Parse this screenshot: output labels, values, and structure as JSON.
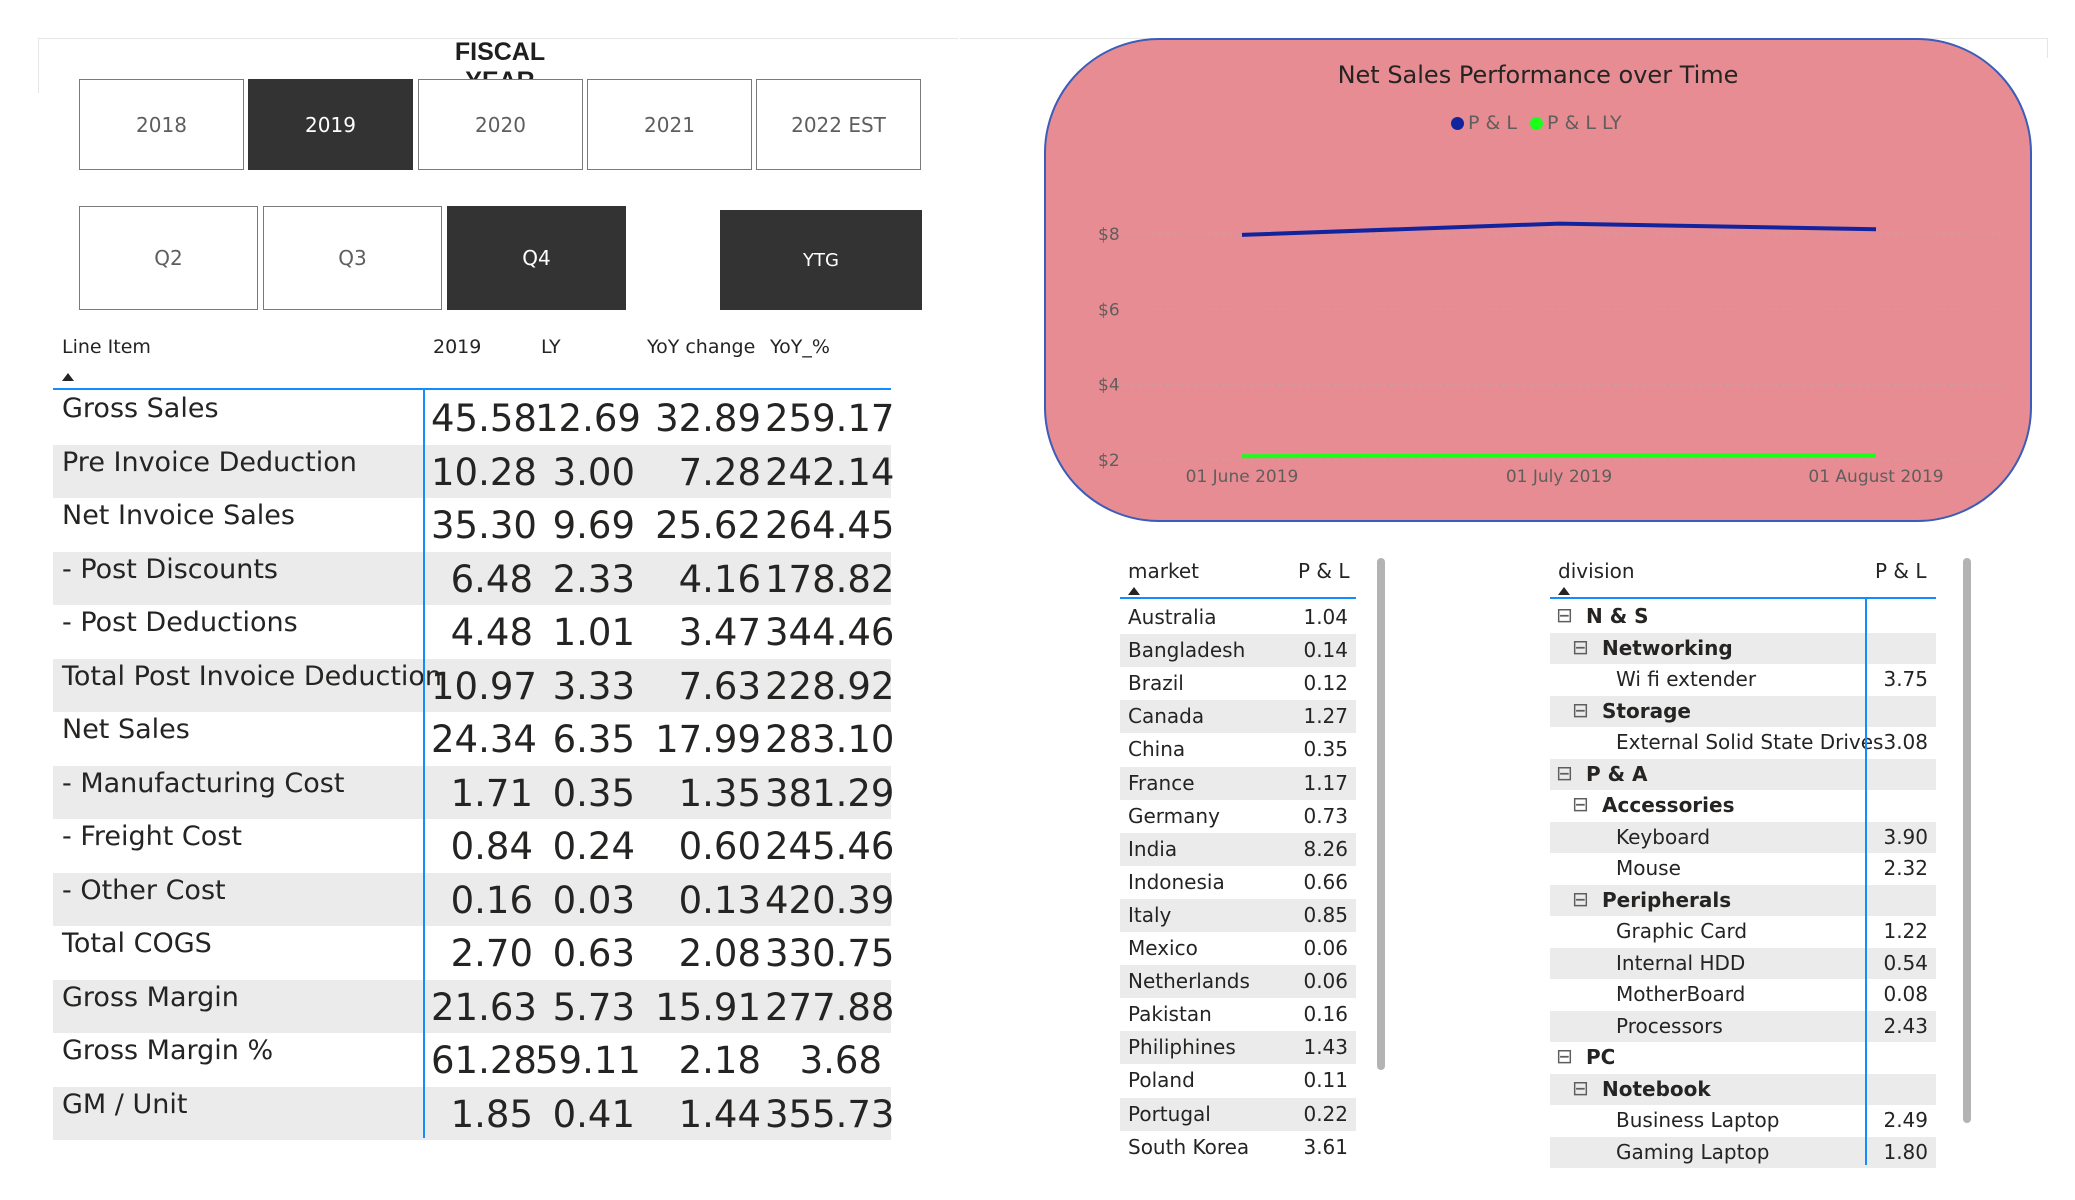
{
  "fiscal_year": {
    "title": "FISCAL YEAR",
    "years": [
      "2018",
      "2019",
      "2020",
      "2021",
      "2022 EST"
    ],
    "selected_year": "2019",
    "quarters": [
      "Q2",
      "Q3",
      "Q4"
    ],
    "selected_quarter": "Q4",
    "ytg_label": "YTG"
  },
  "pl_table": {
    "headers": [
      "Line Item",
      "2019",
      "LY",
      "YoY change",
      "YoY_%"
    ],
    "rows": [
      {
        "label": "Gross Sales",
        "cur": "45.58",
        "ly": "12.69",
        "chg": "32.89",
        "pct": "259.17"
      },
      {
        "label": "Pre Invoice Deduction",
        "cur": "10.28",
        "ly": "3.00",
        "chg": "7.28",
        "pct": "242.14"
      },
      {
        "label": "Net Invoice Sales",
        "cur": "35.30",
        "ly": "9.69",
        "chg": "25.62",
        "pct": "264.45"
      },
      {
        "label": "- Post Discounts",
        "cur": "6.48",
        "ly": "2.33",
        "chg": "4.16",
        "pct": "178.82"
      },
      {
        "label": "- Post Deductions",
        "cur": "4.48",
        "ly": "1.01",
        "chg": "3.47",
        "pct": "344.46"
      },
      {
        "label": "Total Post Invoice Deduction",
        "cur": "10.97",
        "ly": "3.33",
        "chg": "7.63",
        "pct": "228.92"
      },
      {
        "label": "Net Sales",
        "cur": "24.34",
        "ly": "6.35",
        "chg": "17.99",
        "pct": "283.10"
      },
      {
        "label": "- Manufacturing Cost",
        "cur": "1.71",
        "ly": "0.35",
        "chg": "1.35",
        "pct": "381.29"
      },
      {
        "label": "- Freight Cost",
        "cur": "0.84",
        "ly": "0.24",
        "chg": "0.60",
        "pct": "245.46"
      },
      {
        "label": "- Other Cost",
        "cur": "0.16",
        "ly": "0.03",
        "chg": "0.13",
        "pct": "420.39"
      },
      {
        "label": "Total COGS",
        "cur": "2.70",
        "ly": "0.63",
        "chg": "2.08",
        "pct": "330.75"
      },
      {
        "label": "Gross Margin",
        "cur": "21.63",
        "ly": "5.73",
        "chg": "15.91",
        "pct": "277.88"
      },
      {
        "label": "Gross Margin %",
        "cur": "61.28",
        "ly": "59.11",
        "chg": "2.18",
        "pct": "3.68"
      },
      {
        "label": "GM / Unit",
        "cur": "1.85",
        "ly": "0.41",
        "chg": "1.44",
        "pct": "355.73"
      }
    ]
  },
  "chart_data": {
    "type": "line",
    "title": "Net Sales Performance over Time",
    "x": [
      "01 June 2019",
      "01 July 2019",
      "01 August 2019"
    ],
    "series": [
      {
        "name": "P & L",
        "color": "#12239e",
        "values": [
          7.98,
          8.28,
          8.13
        ]
      },
      {
        "name": "P & L LY",
        "color": "#1aff1a",
        "values": [
          2.1,
          2.12,
          2.12
        ]
      }
    ],
    "y_ticks": [
      "$2",
      "$4",
      "$6",
      "$8"
    ],
    "ylim": [
      2,
      8.8
    ],
    "grid": true,
    "legend_position": "top-center"
  },
  "market_table": {
    "headers": [
      "market",
      "P & L"
    ],
    "rows": [
      {
        "market": "Australia",
        "value": "1.04"
      },
      {
        "market": "Bangladesh",
        "value": "0.14"
      },
      {
        "market": "Brazil",
        "value": "0.12"
      },
      {
        "market": "Canada",
        "value": "1.27"
      },
      {
        "market": "China",
        "value": "0.35"
      },
      {
        "market": "France",
        "value": "1.17"
      },
      {
        "market": "Germany",
        "value": "0.73"
      },
      {
        "market": "India",
        "value": "8.26"
      },
      {
        "market": "Indonesia",
        "value": "0.66"
      },
      {
        "market": "Italy",
        "value": "0.85"
      },
      {
        "market": "Mexico",
        "value": "0.06"
      },
      {
        "market": "Netherlands",
        "value": "0.06"
      },
      {
        "market": "Pakistan",
        "value": "0.16"
      },
      {
        "market": "Philiphines",
        "value": "1.43"
      },
      {
        "market": "Poland",
        "value": "0.11"
      },
      {
        "market": "Portugal",
        "value": "0.22"
      },
      {
        "market": "South Korea",
        "value": "3.61"
      }
    ]
  },
  "division_table": {
    "headers": [
      "division",
      "P & L"
    ],
    "rows": [
      {
        "label": "N & S",
        "level": 0,
        "value": "",
        "expand": "⊟",
        "bold": true
      },
      {
        "label": "Networking",
        "level": 1,
        "value": "",
        "expand": "⊟",
        "bold": true
      },
      {
        "label": "Wi fi extender",
        "level": 2,
        "value": "3.75",
        "expand": "",
        "bold": false
      },
      {
        "label": "Storage",
        "level": 1,
        "value": "",
        "expand": "⊟",
        "bold": true
      },
      {
        "label": "External Solid State Drives",
        "level": 2,
        "value": "3.08",
        "expand": "",
        "bold": false
      },
      {
        "label": "P & A",
        "level": 0,
        "value": "",
        "expand": "⊟",
        "bold": true
      },
      {
        "label": "Accessories",
        "level": 1,
        "value": "",
        "expand": "⊟",
        "bold": true
      },
      {
        "label": "Keyboard",
        "level": 2,
        "value": "3.90",
        "expand": "",
        "bold": false
      },
      {
        "label": "Mouse",
        "level": 2,
        "value": "2.32",
        "expand": "",
        "bold": false
      },
      {
        "label": "Peripherals",
        "level": 1,
        "value": "",
        "expand": "⊟",
        "bold": true
      },
      {
        "label": "Graphic Card",
        "level": 2,
        "value": "1.22",
        "expand": "",
        "bold": false
      },
      {
        "label": "Internal HDD",
        "level": 2,
        "value": "0.54",
        "expand": "",
        "bold": false
      },
      {
        "label": "MotherBoard",
        "level": 2,
        "value": "0.08",
        "expand": "",
        "bold": false
      },
      {
        "label": "Processors",
        "level": 2,
        "value": "2.43",
        "expand": "",
        "bold": false
      },
      {
        "label": "PC",
        "level": 0,
        "value": "",
        "expand": "⊟",
        "bold": true
      },
      {
        "label": "Notebook",
        "level": 1,
        "value": "",
        "expand": "⊟",
        "bold": true
      },
      {
        "label": "Business Laptop",
        "level": 2,
        "value": "2.49",
        "expand": "",
        "bold": false
      },
      {
        "label": "Gaming Laptop",
        "level": 2,
        "value": "1.80",
        "expand": "",
        "bold": false
      }
    ]
  }
}
